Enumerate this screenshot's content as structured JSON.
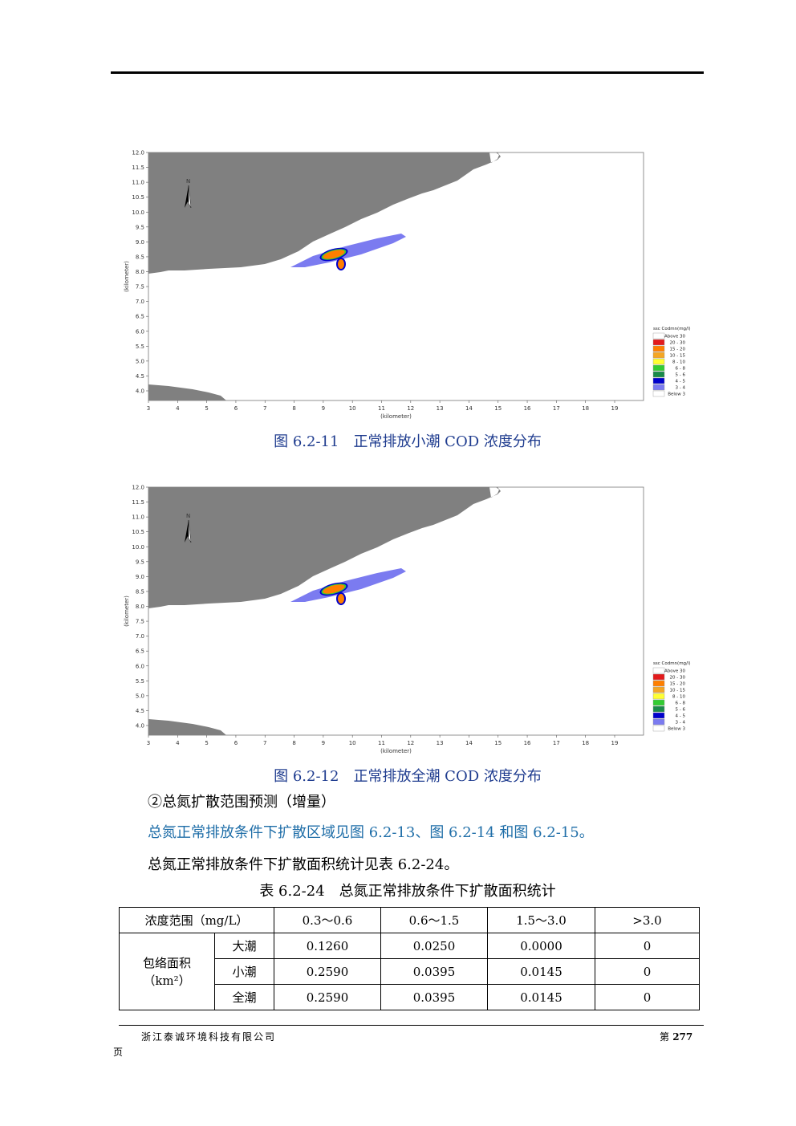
{
  "figures": [
    {
      "caption": "图 6.2-11　正常排放小潮 COD 浓度分布",
      "xlabel": "(kilometer)",
      "ylabel": "(kilometer)",
      "x_ticks": [
        "3",
        "4",
        "5",
        "6",
        "7",
        "8",
        "9",
        "10",
        "11",
        "12",
        "13",
        "14",
        "15",
        "16",
        "17",
        "18",
        "19"
      ],
      "y_ticks": [
        "12.0",
        "11.5",
        "11.0",
        "10.5",
        "10.0",
        "9.5",
        "9.0",
        "8.5",
        "8.0",
        "7.5",
        "7.0",
        "6.5",
        "6.0",
        "5.5",
        "5.0",
        "4.5",
        "4.0"
      ],
      "north_label": "N",
      "legend_title": "ssc Codmn(mg/l)",
      "legend_items": [
        {
          "label": "Above 30",
          "color": "#ffffff"
        },
        {
          "label": "20 - 30",
          "color": "#e31a1c"
        },
        {
          "label": "15 - 20",
          "color": "#ff7f00"
        },
        {
          "label": "10 - 15",
          "color": "#f5a623"
        },
        {
          "label": "8 - 10",
          "color": "#ffff33"
        },
        {
          "label": "6 - 8",
          "color": "#33cc33"
        },
        {
          "label": "5 - 6",
          "color": "#1a8a4a"
        },
        {
          "label": "4 - 5",
          "color": "#0000cc"
        },
        {
          "label": "3 - 4",
          "color": "#7b7bf0"
        },
        {
          "label": "Below 3",
          "color": "#ffffff"
        }
      ]
    },
    {
      "caption": "图 6.2-12　正常排放全潮 COD 浓度分布",
      "xlabel": "(kilometer)",
      "ylabel": "(kilometer)",
      "x_ticks": [
        "3",
        "4",
        "5",
        "6",
        "7",
        "8",
        "9",
        "10",
        "11",
        "12",
        "13",
        "14",
        "15",
        "16",
        "17",
        "18",
        "19"
      ],
      "y_ticks": [
        "12.0",
        "11.5",
        "11.0",
        "10.5",
        "10.0",
        "9.5",
        "9.0",
        "8.5",
        "8.0",
        "7.5",
        "7.0",
        "6.5",
        "6.0",
        "5.5",
        "5.0",
        "4.5",
        "4.0"
      ],
      "north_label": "N",
      "legend_title": "ssc Codmn(mg/l)",
      "legend_items": [
        {
          "label": "Above 30",
          "color": "#ffffff"
        },
        {
          "label": "20 - 30",
          "color": "#e31a1c"
        },
        {
          "label": "15 - 20",
          "color": "#ff7f00"
        },
        {
          "label": "10 - 15",
          "color": "#f5a623"
        },
        {
          "label": "8 - 10",
          "color": "#ffff33"
        },
        {
          "label": "6 - 8",
          "color": "#33cc33"
        },
        {
          "label": "5 - 6",
          "color": "#1a8a4a"
        },
        {
          "label": "4 - 5",
          "color": "#0000cc"
        },
        {
          "label": "3 - 4",
          "color": "#7b7bf0"
        },
        {
          "label": "Below 3",
          "color": "#ffffff"
        }
      ]
    }
  ],
  "section_heading": "②总氮扩散范围预测（增量）",
  "para_link": "总氮正常排放条件下扩散区域见图 6.2-13、图 6.2-14 和图 6.2-15。",
  "para_stats": "总氮正常排放条件下扩散面积统计见表 6.2-24。",
  "table_caption": "表 6.2-24　总氮正常排放条件下扩散面积统计",
  "table": {
    "header": [
      "浓度范围（mg/L）",
      "0.3～0.6",
      "0.6～1.5",
      "1.5～3.0",
      ">3.0"
    ],
    "row_group_label": "包络面积",
    "row_group_unit": "（km²）",
    "rows": [
      {
        "tide": "大潮",
        "values": [
          "0.1260",
          "0.0250",
          "0.0000",
          "0"
        ]
      },
      {
        "tide": "小潮",
        "values": [
          "0.2590",
          "0.0395",
          "0.0145",
          "0"
        ]
      },
      {
        "tide": "全潮",
        "values": [
          "0.2590",
          "0.0395",
          "0.0145",
          "0"
        ]
      }
    ]
  },
  "footer": {
    "company": "浙江泰诚环境科技有限公司",
    "page_prefix": "第",
    "page_number": "277",
    "page_suffix": "页"
  }
}
